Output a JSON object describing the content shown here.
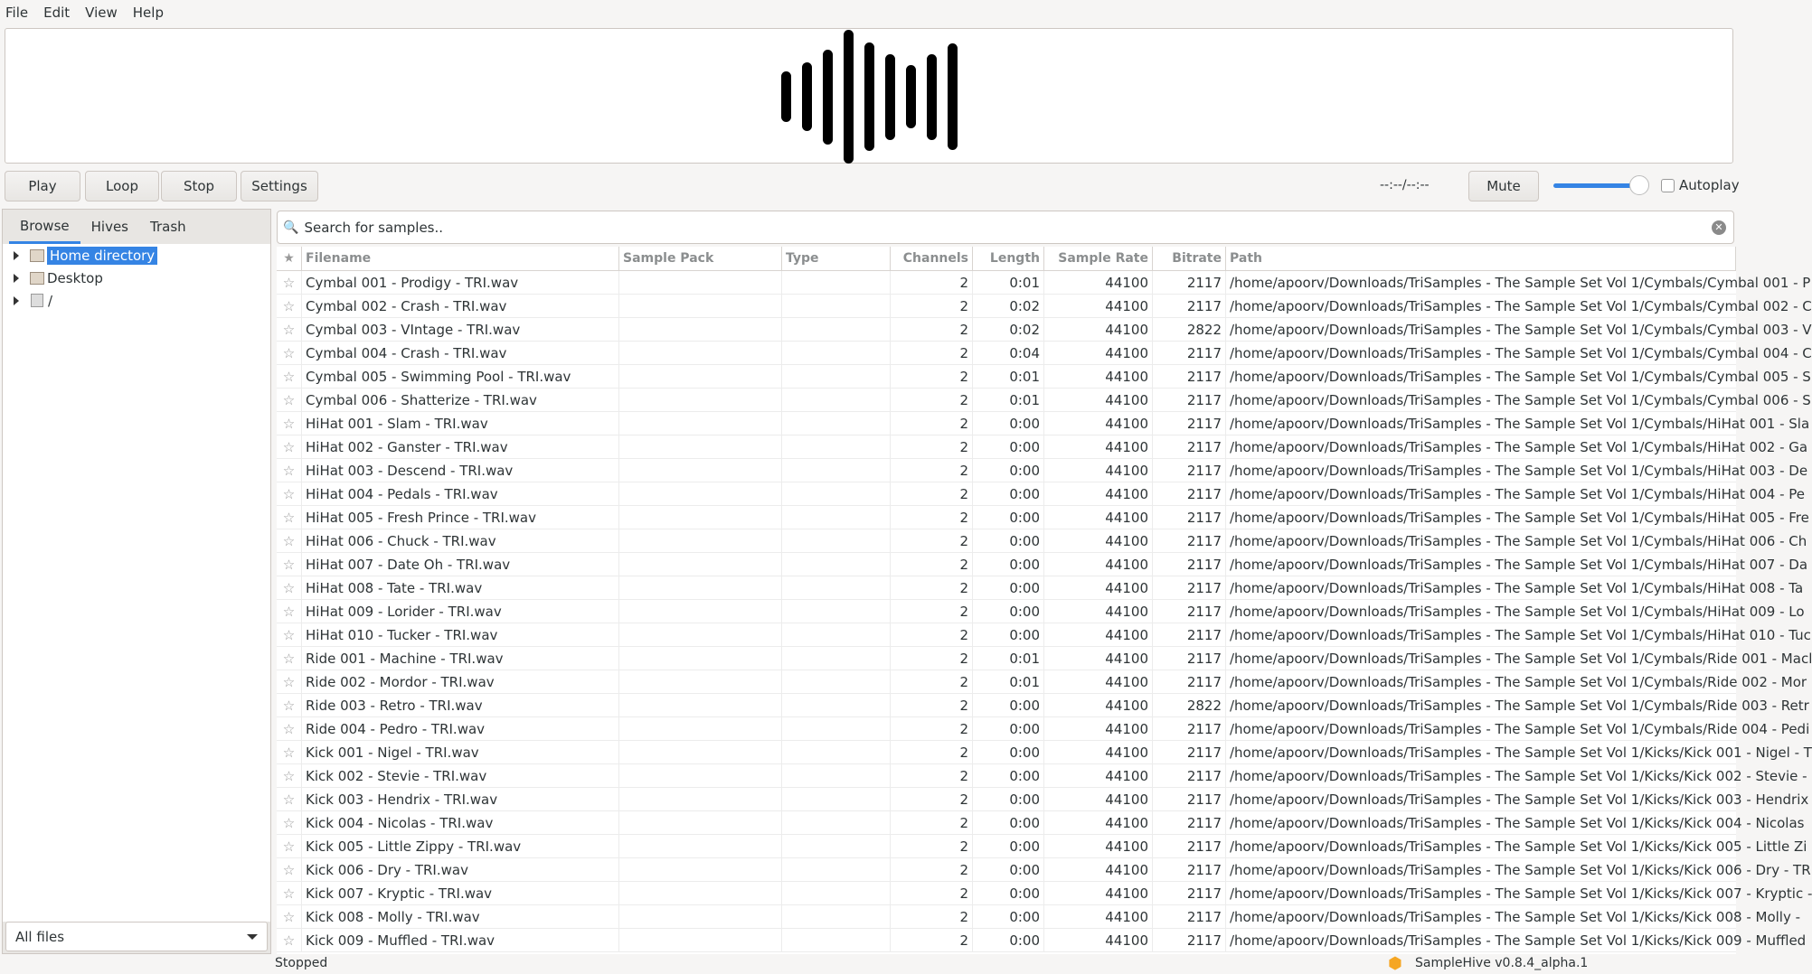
{
  "menu": [
    "File",
    "Edit",
    "View",
    "Help"
  ],
  "controls": {
    "play": "Play",
    "loop": "Loop",
    "stop": "Stop",
    "settings": "Settings",
    "time": "--:--/--:--",
    "mute": "Mute",
    "autoplay": "Autoplay",
    "volume_percent": 90,
    "autoplay_checked": false
  },
  "sidebar": {
    "tabs": [
      "Browse",
      "Hives",
      "Trash"
    ],
    "active_tab": "Browse",
    "tree": [
      "Home directory",
      "Desktop",
      "/"
    ],
    "filter": "All files"
  },
  "search": {
    "placeholder": "Search for samples.."
  },
  "table": {
    "columns": [
      "Filename",
      "Sample Pack",
      "Type",
      "Channels",
      "Length",
      "Sample Rate",
      "Bitrate",
      "Path"
    ],
    "rows": [
      [
        "Cymbal 001 - Prodigy - TRI.wav",
        "",
        "",
        "2",
        "0:01",
        "44100",
        "2117",
        "/home/apoorv/Downloads/TriSamples - The Sample Set Vol 1/Cymbals/Cymbal 001 - P"
      ],
      [
        "Cymbal 002 - Crash - TRI.wav",
        "",
        "",
        "2",
        "0:02",
        "44100",
        "2117",
        "/home/apoorv/Downloads/TriSamples - The Sample Set Vol 1/Cymbals/Cymbal 002 - C"
      ],
      [
        "Cymbal 003 - VIntage - TRI.wav",
        "",
        "",
        "2",
        "0:02",
        "44100",
        "2822",
        "/home/apoorv/Downloads/TriSamples - The Sample Set Vol 1/Cymbals/Cymbal 003 - V"
      ],
      [
        "Cymbal 004 - Crash - TRI.wav",
        "",
        "",
        "2",
        "0:04",
        "44100",
        "2117",
        "/home/apoorv/Downloads/TriSamples - The Sample Set Vol 1/Cymbals/Cymbal 004 - C"
      ],
      [
        "Cymbal 005 - Swimming Pool - TRI.wav",
        "",
        "",
        "2",
        "0:01",
        "44100",
        "2117",
        "/home/apoorv/Downloads/TriSamples - The Sample Set Vol 1/Cymbals/Cymbal 005 - S"
      ],
      [
        "Cymbal 006 - Shatterize - TRI.wav",
        "",
        "",
        "2",
        "0:01",
        "44100",
        "2117",
        "/home/apoorv/Downloads/TriSamples - The Sample Set Vol 1/Cymbals/Cymbal 006 - S"
      ],
      [
        "HiHat 001 - Slam - TRI.wav",
        "",
        "",
        "2",
        "0:00",
        "44100",
        "2117",
        "/home/apoorv/Downloads/TriSamples - The Sample Set Vol 1/Cymbals/HiHat 001 - Sla"
      ],
      [
        "HiHat 002 - Ganster - TRI.wav",
        "",
        "",
        "2",
        "0:00",
        "44100",
        "2117",
        "/home/apoorv/Downloads/TriSamples - The Sample Set Vol 1/Cymbals/HiHat 002 - Ga"
      ],
      [
        "HiHat 003 - Descend - TRI.wav",
        "",
        "",
        "2",
        "0:00",
        "44100",
        "2117",
        "/home/apoorv/Downloads/TriSamples - The Sample Set Vol 1/Cymbals/HiHat 003 - De"
      ],
      [
        "HiHat 004 - Pedals - TRI.wav",
        "",
        "",
        "2",
        "0:00",
        "44100",
        "2117",
        "/home/apoorv/Downloads/TriSamples - The Sample Set Vol 1/Cymbals/HiHat 004 - Pe"
      ],
      [
        "HiHat 005 - Fresh Prince - TRI.wav",
        "",
        "",
        "2",
        "0:00",
        "44100",
        "2117",
        "/home/apoorv/Downloads/TriSamples - The Sample Set Vol 1/Cymbals/HiHat 005 - Fre"
      ],
      [
        "HiHat 006 - Chuck - TRI.wav",
        "",
        "",
        "2",
        "0:00",
        "44100",
        "2117",
        "/home/apoorv/Downloads/TriSamples - The Sample Set Vol 1/Cymbals/HiHat 006 - Ch"
      ],
      [
        "HiHat 007 - Date Oh - TRI.wav",
        "",
        "",
        "2",
        "0:00",
        "44100",
        "2117",
        "/home/apoorv/Downloads/TriSamples - The Sample Set Vol 1/Cymbals/HiHat 007 - Da"
      ],
      [
        "HiHat 008 - Tate - TRI.wav",
        "",
        "",
        "2",
        "0:00",
        "44100",
        "2117",
        "/home/apoorv/Downloads/TriSamples - The Sample Set Vol 1/Cymbals/HiHat 008 - Ta"
      ],
      [
        "HiHat 009 - Lorider - TRI.wav",
        "",
        "",
        "2",
        "0:00",
        "44100",
        "2117",
        "/home/apoorv/Downloads/TriSamples - The Sample Set Vol 1/Cymbals/HiHat 009 - Lo"
      ],
      [
        "HiHat 010 - Tucker - TRI.wav",
        "",
        "",
        "2",
        "0:00",
        "44100",
        "2117",
        "/home/apoorv/Downloads/TriSamples - The Sample Set Vol 1/Cymbals/HiHat 010 - Tuc"
      ],
      [
        "Ride 001 - Machine - TRI.wav",
        "",
        "",
        "2",
        "0:01",
        "44100",
        "2117",
        "/home/apoorv/Downloads/TriSamples - The Sample Set Vol 1/Cymbals/Ride 001 - Macl"
      ],
      [
        "Ride 002 - Mordor - TRI.wav",
        "",
        "",
        "2",
        "0:01",
        "44100",
        "2117",
        "/home/apoorv/Downloads/TriSamples - The Sample Set Vol 1/Cymbals/Ride 002 - Mor"
      ],
      [
        "Ride 003 - Retro - TRI.wav",
        "",
        "",
        "2",
        "0:00",
        "44100",
        "2822",
        "/home/apoorv/Downloads/TriSamples - The Sample Set Vol 1/Cymbals/Ride 003 - Retr"
      ],
      [
        "Ride 004 - Pedro - TRI.wav",
        "",
        "",
        "2",
        "0:00",
        "44100",
        "2117",
        "/home/apoorv/Downloads/TriSamples - The Sample Set Vol 1/Cymbals/Ride 004 - Pedi"
      ],
      [
        "Kick 001 - Nigel - TRI.wav",
        "",
        "",
        "2",
        "0:00",
        "44100",
        "2117",
        "/home/apoorv/Downloads/TriSamples - The Sample Set Vol 1/Kicks/Kick 001 - Nigel - T"
      ],
      [
        "Kick 002 - Stevie - TRI.wav",
        "",
        "",
        "2",
        "0:00",
        "44100",
        "2117",
        "/home/apoorv/Downloads/TriSamples - The Sample Set Vol 1/Kicks/Kick 002 - Stevie -"
      ],
      [
        "Kick 003 - Hendrix - TRI.wav",
        "",
        "",
        "2",
        "0:00",
        "44100",
        "2117",
        "/home/apoorv/Downloads/TriSamples - The Sample Set Vol 1/Kicks/Kick 003 - Hendrix"
      ],
      [
        "Kick 004 - Nicolas - TRI.wav",
        "",
        "",
        "2",
        "0:00",
        "44100",
        "2117",
        "/home/apoorv/Downloads/TriSamples - The Sample Set Vol 1/Kicks/Kick 004 - Nicolas"
      ],
      [
        "Kick 005 - Little Zippy - TRI.wav",
        "",
        "",
        "2",
        "0:00",
        "44100",
        "2117",
        "/home/apoorv/Downloads/TriSamples - The Sample Set Vol 1/Kicks/Kick 005 - Little Zi"
      ],
      [
        "Kick 006 - Dry - TRI.wav",
        "",
        "",
        "2",
        "0:00",
        "44100",
        "2117",
        "/home/apoorv/Downloads/TriSamples - The Sample Set Vol 1/Kicks/Kick 006 - Dry - TR"
      ],
      [
        "Kick 007 - Kryptic - TRI.wav",
        "",
        "",
        "2",
        "0:00",
        "44100",
        "2117",
        "/home/apoorv/Downloads/TriSamples - The Sample Set Vol 1/Kicks/Kick 007 - Kryptic -"
      ],
      [
        "Kick 008 - Molly - TRI.wav",
        "",
        "",
        "2",
        "0:00",
        "44100",
        "2117",
        "/home/apoorv/Downloads/TriSamples - The Sample Set Vol 1/Kicks/Kick 008 - Molly - "
      ],
      [
        "Kick 009 - Muffled - TRI.wav",
        "",
        "",
        "2",
        "0:00",
        "44100",
        "2117",
        "/home/apoorv/Downloads/TriSamples - The Sample Set Vol 1/Kicks/Kick 009 - Muffled"
      ]
    ]
  },
  "status": {
    "state": "Stopped",
    "version": "SampleHive v0.8.4_alpha.1"
  },
  "colors": {
    "accent": "#3584e4"
  }
}
